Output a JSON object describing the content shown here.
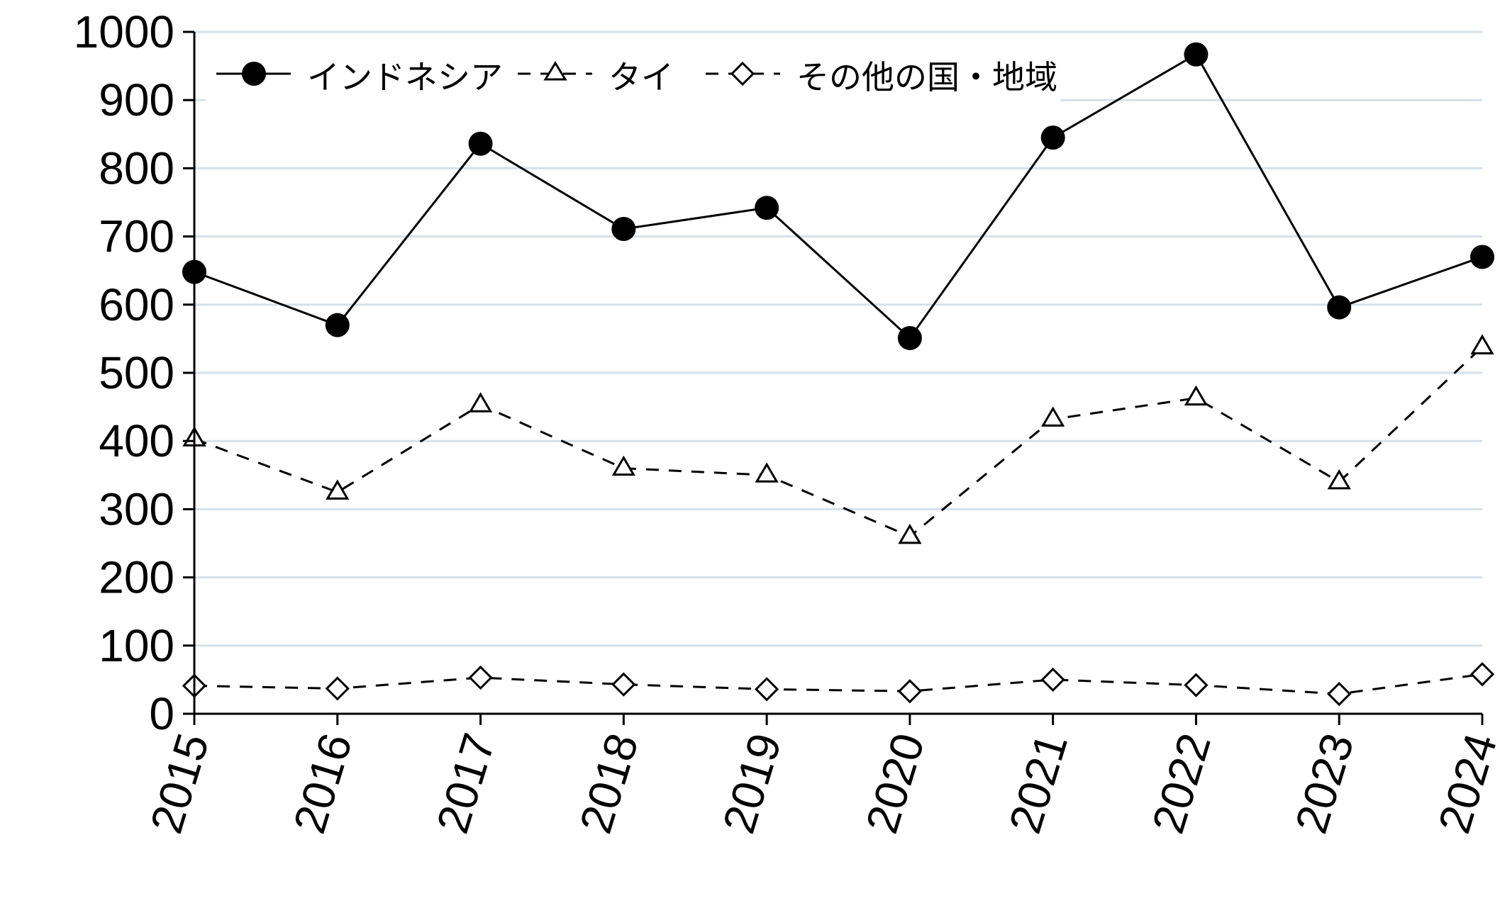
{
  "chart_data": {
    "type": "line",
    "title": "",
    "xlabel": "",
    "ylabel": "",
    "categories": [
      "2015",
      "2016",
      "2017",
      "2018",
      "2019",
      "2020",
      "2021",
      "2022",
      "2023",
      "2024"
    ],
    "ylim": [
      0,
      1000
    ],
    "yticks": [
      "0",
      "100",
      "200",
      "300",
      "400",
      "500",
      "600",
      "700",
      "800",
      "900",
      "1000"
    ],
    "grid": "horizontal",
    "legend_position": "top-left",
    "series": [
      {
        "name": "インドネシア",
        "marker": "filled-circle",
        "line_style": "solid",
        "color": "#000000",
        "values": [
          648,
          570,
          836,
          711,
          742,
          551,
          845,
          967,
          596,
          670
        ]
      },
      {
        "name": "タイ",
        "marker": "hollow-triangle",
        "line_style": "dashed",
        "color": "#000000",
        "values": [
          403,
          325,
          453,
          360,
          350,
          260,
          432,
          463,
          340,
          538
        ]
      },
      {
        "name": "その他の国・地域",
        "marker": "hollow-diamond",
        "line_style": "dashed",
        "color": "#000000",
        "values": [
          41,
          37,
          53,
          43,
          36,
          33,
          50,
          42,
          29,
          58
        ]
      }
    ]
  },
  "colors": {
    "grid": "#d6e0ea",
    "axis": "#000000",
    "background": "#ffffff"
  }
}
